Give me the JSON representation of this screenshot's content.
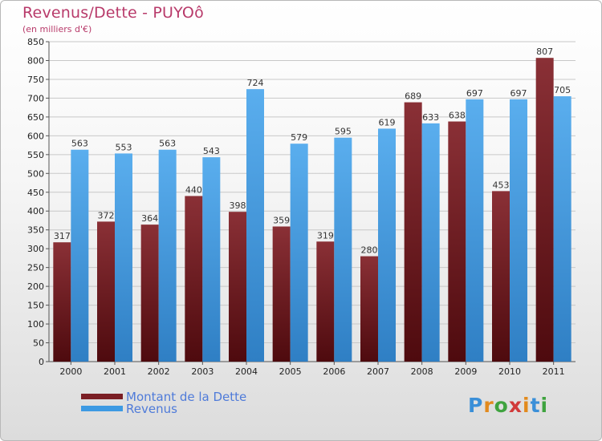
{
  "header": {
    "title": "Revenus/Dette - PUYOô",
    "subtitle": "(en milliers d'€)"
  },
  "chart_data": {
    "type": "bar",
    "categories": [
      "2000",
      "2001",
      "2002",
      "2003",
      "2004",
      "2005",
      "2006",
      "2007",
      "2008",
      "2009",
      "2010",
      "2011"
    ],
    "series": [
      {
        "name": "Montant de la Dette",
        "color": "#7a1e24",
        "values": [
          317,
          372,
          364,
          440,
          398,
          359,
          319,
          280,
          689,
          638,
          453,
          807
        ]
      },
      {
        "name": "Revenus",
        "color": "#3d9ae3",
        "values": [
          563,
          553,
          563,
          543,
          724,
          579,
          595,
          619,
          633,
          697,
          697,
          705
        ]
      }
    ],
    "ylim": [
      0,
      850
    ],
    "yticks": [
      0,
      50,
      100,
      150,
      200,
      250,
      300,
      350,
      400,
      450,
      500,
      550,
      600,
      650,
      700,
      750,
      800,
      850
    ],
    "grid": true,
    "legend": "bottom-left"
  },
  "legend": {
    "items": [
      {
        "label": "Montant de la Dette",
        "color": "#7a1e24"
      },
      {
        "label": "Revenus",
        "color": "#3d9ae3"
      }
    ]
  },
  "logo": {
    "letters": [
      "P",
      "r",
      "o",
      "x",
      "i",
      "t",
      "i"
    ]
  }
}
